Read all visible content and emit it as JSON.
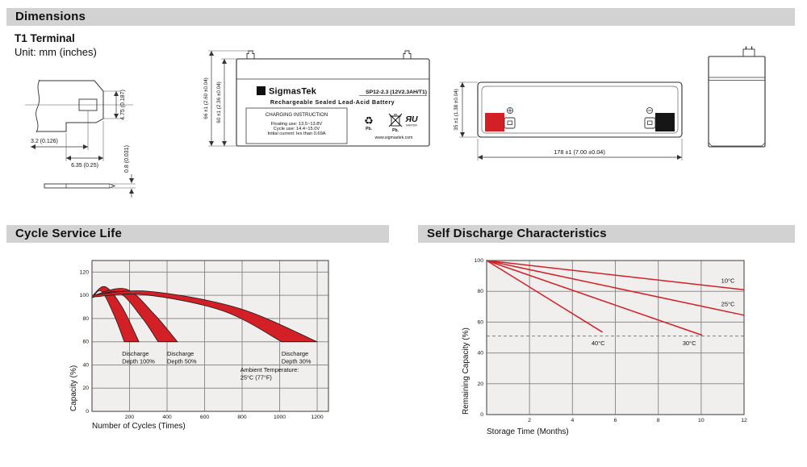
{
  "sections": {
    "dimensions": "Dimensions",
    "cycle": "Cycle Service Life",
    "self_discharge": "Self Discharge Characteristics"
  },
  "dimensions_panel": {
    "terminal_title": "T1 Terminal",
    "unit_note": "Unit: mm (inches)",
    "terminal_detail": {
      "dim_tab_height": "4.75 (0.187)",
      "dim_hole_offset": "3.2 (0.126)",
      "dim_tab_width": "6.35 (0.25)",
      "dim_thickness": "0.8 (0.031)"
    },
    "front_view": {
      "dim_total_height": "66 ±1 (2.60 ±0.04)",
      "dim_case_height": "60 ±1 (2.36 ±0.04)"
    },
    "top_view": {
      "dim_width": "35 ±1 (1.38 ±0.04)",
      "dim_length": "178 ±1 (7.00 ±0.04)"
    }
  },
  "battery_label": {
    "logo_glyph": "Σ",
    "brand": "SigmasTek",
    "model": "SP12-2.3 (12V2.3AH/T1)",
    "type_line": "Rechargeable Sealed Lead-Acid Battery",
    "charging_title": "CHARGING INSTRUCTION",
    "charging_line1": "Floating use: 13.5~13.8V",
    "charging_line2": "Cycle use: 14.4~15.0V",
    "charging_line3": "Initial current: les than 0.69A",
    "pb_recycle_glyph": "♻",
    "pb_recycle_label": "Pb.",
    "pb_bin_label": "Pb.",
    "ul_glyph": "ЯU",
    "ul_code": "MH47929",
    "website": "www.sigmastek.com"
  },
  "colors": {
    "accent_red": "#d32027",
    "terminal_negative": "#161616",
    "header_bar_bg": "#d2d2d2",
    "plot_bg": "#f0efed",
    "gridline": "#8d8d8d"
  },
  "chart_data": [
    {
      "type": "area",
      "title": "Cycle Service Life",
      "xlabel": "Number of Cycles (Times)",
      "ylabel": "Capacity (%)",
      "xlim": [
        0,
        1260
      ],
      "ylim": [
        0,
        130
      ],
      "xticks": [
        200,
        400,
        600,
        800,
        1000,
        1200
      ],
      "yticks": [
        0,
        20,
        40,
        60,
        80,
        100,
        120
      ],
      "grid_x": [
        200,
        400,
        600,
        800,
        1000,
        1200
      ],
      "grid_y": [
        20,
        40,
        60,
        80,
        100,
        120
      ],
      "grid_on": true,
      "band_color": "#d32027",
      "bands": [
        {
          "name": "Discharge Depth 100%",
          "upper": [
            [
              0,
              99
            ],
            [
              70,
              107.5
            ],
            [
              160,
              90
            ],
            [
              250,
              60
            ]
          ],
          "lower": [
            [
              0,
              97.5
            ],
            [
              50,
              103.5
            ],
            [
              120,
              82
            ],
            [
              172,
              60
            ]
          ]
        },
        {
          "name": "Discharge Depth 50%",
          "upper": [
            [
              0,
              99.5
            ],
            [
              180,
              105.5
            ],
            [
              330,
              84
            ],
            [
              455,
              60
            ]
          ],
          "lower": [
            [
              0,
              98
            ],
            [
              140,
              102.5
            ],
            [
              265,
              81
            ],
            [
              352,
              60
            ]
          ]
        },
        {
          "name": "Discharge Depth 30%",
          "upper": [
            [
              0,
              100
            ],
            [
              300,
              103.5
            ],
            [
              780,
              89
            ],
            [
              1200,
              60
            ]
          ],
          "lower": [
            [
              0,
              98.5
            ],
            [
              280,
              100.5
            ],
            [
              700,
              86.5
            ],
            [
              1010,
              60
            ]
          ]
        }
      ],
      "annotations": [
        {
          "lines": [
            "Discharge",
            "Depth 100%"
          ],
          "x": 160,
          "y": 48
        },
        {
          "lines": [
            "Discharge",
            "Depth 50%"
          ],
          "x": 400,
          "y": 48
        },
        {
          "lines": [
            "Discharge",
            "Depth 30%"
          ],
          "x": 1010,
          "y": 48
        },
        {
          "lines": [
            "Ambient Temperature:",
            "25°C (77°F)"
          ],
          "x": 790,
          "y": 34
        }
      ]
    },
    {
      "type": "line",
      "title": "Self Discharge Characteristics",
      "xlabel": "Storage Time (Months)",
      "ylabel": "Remaining Capacity (%)",
      "xlim": [
        0,
        12
      ],
      "ylim": [
        0,
        100
      ],
      "xticks": [
        2,
        4,
        6,
        8,
        10,
        12
      ],
      "yticks": [
        0,
        20,
        40,
        60,
        80,
        100
      ],
      "grid_x": [
        2,
        4,
        6,
        8,
        10
      ],
      "grid_y": [
        20,
        40,
        60,
        80
      ],
      "grid_on": true,
      "line_color": "#d32027",
      "reference_line": {
        "y": 51,
        "style": "dashed"
      },
      "series": [
        {
          "name": "10°C",
          "points": [
            [
              0,
              100
            ],
            [
              12,
              81
            ]
          ],
          "label": [
            11.25,
            85.5
          ]
        },
        {
          "name": "25°C",
          "points": [
            [
              0,
              100
            ],
            [
              12,
              64.5
            ]
          ],
          "label": [
            11.25,
            70.5
          ]
        },
        {
          "name": "30°C",
          "points": [
            [
              0,
              100
            ],
            [
              10.05,
              51.5
            ]
          ],
          "label": [
            9.45,
            45
          ]
        },
        {
          "name": "40°C",
          "points": [
            [
              0,
              100
            ],
            [
              5.4,
              53.5
            ]
          ],
          "label": [
            5.2,
            45
          ]
        }
      ]
    }
  ]
}
